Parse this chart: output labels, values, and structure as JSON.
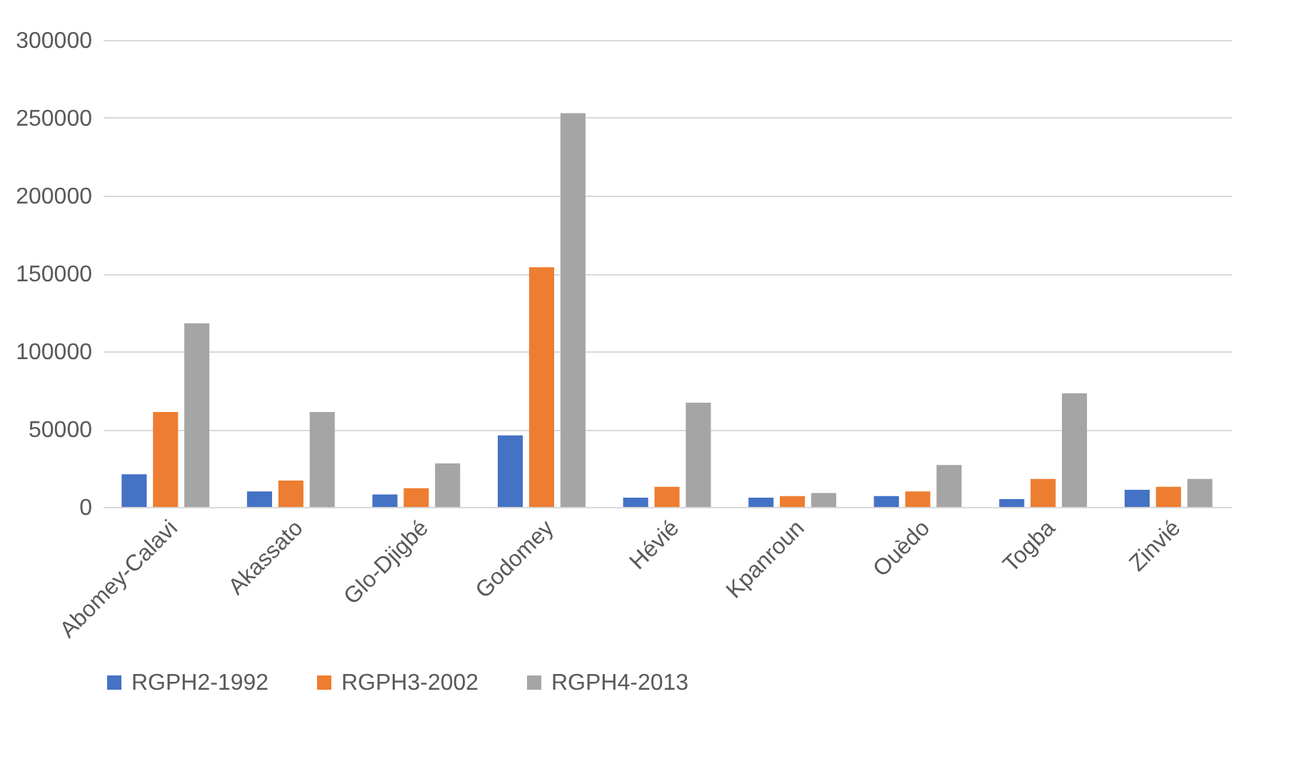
{
  "chart_data": {
    "type": "bar",
    "categories": [
      "Abomey-Calavi",
      "Akassato",
      "Glo-Djigbé",
      "Godomey",
      "Hévié",
      "Kpanroun",
      "Ouèdo",
      "Togba",
      "Zinvié"
    ],
    "series": [
      {
        "name": "RGPH2-1992",
        "color": "#4472c4",
        "values": [
          21000,
          10000,
          8000,
          46000,
          6000,
          6000,
          7000,
          5000,
          11000
        ]
      },
      {
        "name": "RGPH3-2002",
        "color": "#ed7d31",
        "values": [
          61000,
          17000,
          12000,
          154000,
          13000,
          7000,
          10000,
          18000,
          13000
        ]
      },
      {
        "name": "RGPH4-2013",
        "color": "#a5a5a5",
        "values": [
          118000,
          61000,
          28000,
          253000,
          67000,
          9000,
          27000,
          73000,
          18000
        ]
      }
    ],
    "ylim": [
      0,
      300000
    ],
    "yticks": [
      0,
      50000,
      100000,
      150000,
      200000,
      250000,
      300000
    ],
    "grid": "y",
    "legend": "bottom"
  }
}
